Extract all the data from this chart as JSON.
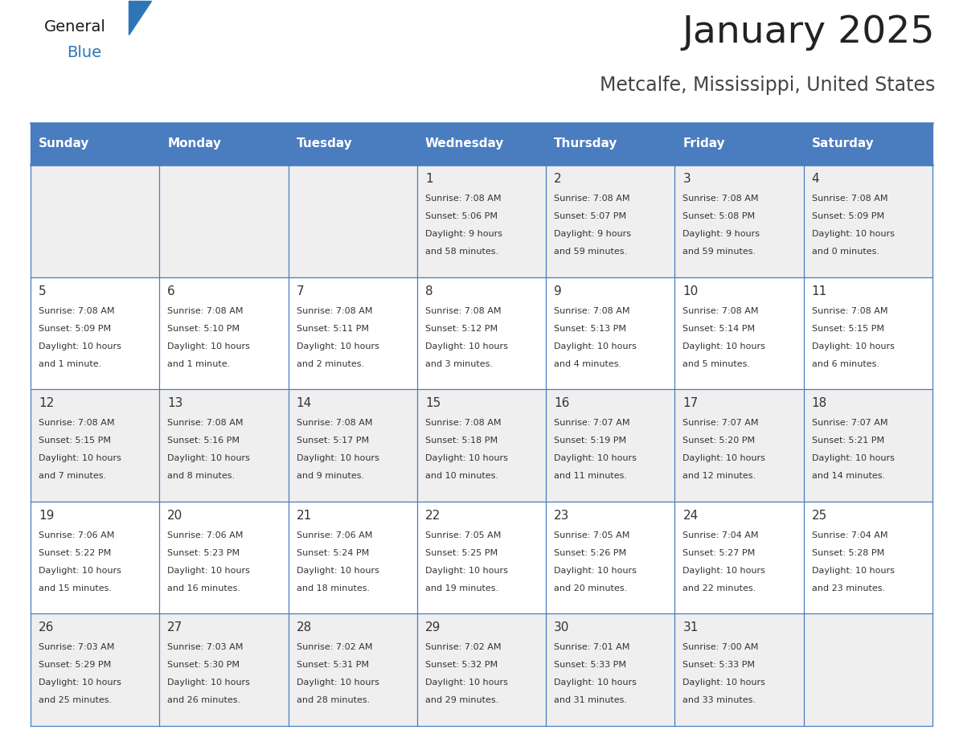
{
  "title": "January 2025",
  "subtitle": "Metcalfe, Mississippi, United States",
  "days_of_week": [
    "Sunday",
    "Monday",
    "Tuesday",
    "Wednesday",
    "Thursday",
    "Friday",
    "Saturday"
  ],
  "header_bg": "#4A7DBF",
  "header_text_color": "#FFFFFF",
  "odd_row_bg": "#EFEFEF",
  "even_row_bg": "#FFFFFF",
  "cell_text_color": "#333333",
  "border_color": "#4A7DBF",
  "title_color": "#222222",
  "subtitle_color": "#444444",
  "logo_general_color": "#1a1a1a",
  "logo_blue_color": "#2E75B6",
  "calendar_data": [
    [
      null,
      null,
      null,
      {
        "day": 1,
        "sunrise": "7:08 AM",
        "sunset": "5:06 PM",
        "dl1": "Daylight: 9 hours",
        "dl2": "and 58 minutes."
      },
      {
        "day": 2,
        "sunrise": "7:08 AM",
        "sunset": "5:07 PM",
        "dl1": "Daylight: 9 hours",
        "dl2": "and 59 minutes."
      },
      {
        "day": 3,
        "sunrise": "7:08 AM",
        "sunset": "5:08 PM",
        "dl1": "Daylight: 9 hours",
        "dl2": "and 59 minutes."
      },
      {
        "day": 4,
        "sunrise": "7:08 AM",
        "sunset": "5:09 PM",
        "dl1": "Daylight: 10 hours",
        "dl2": "and 0 minutes."
      }
    ],
    [
      {
        "day": 5,
        "sunrise": "7:08 AM",
        "sunset": "5:09 PM",
        "dl1": "Daylight: 10 hours",
        "dl2": "and 1 minute."
      },
      {
        "day": 6,
        "sunrise": "7:08 AM",
        "sunset": "5:10 PM",
        "dl1": "Daylight: 10 hours",
        "dl2": "and 1 minute."
      },
      {
        "day": 7,
        "sunrise": "7:08 AM",
        "sunset": "5:11 PM",
        "dl1": "Daylight: 10 hours",
        "dl2": "and 2 minutes."
      },
      {
        "day": 8,
        "sunrise": "7:08 AM",
        "sunset": "5:12 PM",
        "dl1": "Daylight: 10 hours",
        "dl2": "and 3 minutes."
      },
      {
        "day": 9,
        "sunrise": "7:08 AM",
        "sunset": "5:13 PM",
        "dl1": "Daylight: 10 hours",
        "dl2": "and 4 minutes."
      },
      {
        "day": 10,
        "sunrise": "7:08 AM",
        "sunset": "5:14 PM",
        "dl1": "Daylight: 10 hours",
        "dl2": "and 5 minutes."
      },
      {
        "day": 11,
        "sunrise": "7:08 AM",
        "sunset": "5:15 PM",
        "dl1": "Daylight: 10 hours",
        "dl2": "and 6 minutes."
      }
    ],
    [
      {
        "day": 12,
        "sunrise": "7:08 AM",
        "sunset": "5:15 PM",
        "dl1": "Daylight: 10 hours",
        "dl2": "and 7 minutes."
      },
      {
        "day": 13,
        "sunrise": "7:08 AM",
        "sunset": "5:16 PM",
        "dl1": "Daylight: 10 hours",
        "dl2": "and 8 minutes."
      },
      {
        "day": 14,
        "sunrise": "7:08 AM",
        "sunset": "5:17 PM",
        "dl1": "Daylight: 10 hours",
        "dl2": "and 9 minutes."
      },
      {
        "day": 15,
        "sunrise": "7:08 AM",
        "sunset": "5:18 PM",
        "dl1": "Daylight: 10 hours",
        "dl2": "and 10 minutes."
      },
      {
        "day": 16,
        "sunrise": "7:07 AM",
        "sunset": "5:19 PM",
        "dl1": "Daylight: 10 hours",
        "dl2": "and 11 minutes."
      },
      {
        "day": 17,
        "sunrise": "7:07 AM",
        "sunset": "5:20 PM",
        "dl1": "Daylight: 10 hours",
        "dl2": "and 12 minutes."
      },
      {
        "day": 18,
        "sunrise": "7:07 AM",
        "sunset": "5:21 PM",
        "dl1": "Daylight: 10 hours",
        "dl2": "and 14 minutes."
      }
    ],
    [
      {
        "day": 19,
        "sunrise": "7:06 AM",
        "sunset": "5:22 PM",
        "dl1": "Daylight: 10 hours",
        "dl2": "and 15 minutes."
      },
      {
        "day": 20,
        "sunrise": "7:06 AM",
        "sunset": "5:23 PM",
        "dl1": "Daylight: 10 hours",
        "dl2": "and 16 minutes."
      },
      {
        "day": 21,
        "sunrise": "7:06 AM",
        "sunset": "5:24 PM",
        "dl1": "Daylight: 10 hours",
        "dl2": "and 18 minutes."
      },
      {
        "day": 22,
        "sunrise": "7:05 AM",
        "sunset": "5:25 PM",
        "dl1": "Daylight: 10 hours",
        "dl2": "and 19 minutes."
      },
      {
        "day": 23,
        "sunrise": "7:05 AM",
        "sunset": "5:26 PM",
        "dl1": "Daylight: 10 hours",
        "dl2": "and 20 minutes."
      },
      {
        "day": 24,
        "sunrise": "7:04 AM",
        "sunset": "5:27 PM",
        "dl1": "Daylight: 10 hours",
        "dl2": "and 22 minutes."
      },
      {
        "day": 25,
        "sunrise": "7:04 AM",
        "sunset": "5:28 PM",
        "dl1": "Daylight: 10 hours",
        "dl2": "and 23 minutes."
      }
    ],
    [
      {
        "day": 26,
        "sunrise": "7:03 AM",
        "sunset": "5:29 PM",
        "dl1": "Daylight: 10 hours",
        "dl2": "and 25 minutes."
      },
      {
        "day": 27,
        "sunrise": "7:03 AM",
        "sunset": "5:30 PM",
        "dl1": "Daylight: 10 hours",
        "dl2": "and 26 minutes."
      },
      {
        "day": 28,
        "sunrise": "7:02 AM",
        "sunset": "5:31 PM",
        "dl1": "Daylight: 10 hours",
        "dl2": "and 28 minutes."
      },
      {
        "day": 29,
        "sunrise": "7:02 AM",
        "sunset": "5:32 PM",
        "dl1": "Daylight: 10 hours",
        "dl2": "and 29 minutes."
      },
      {
        "day": 30,
        "sunrise": "7:01 AM",
        "sunset": "5:33 PM",
        "dl1": "Daylight: 10 hours",
        "dl2": "and 31 minutes."
      },
      {
        "day": 31,
        "sunrise": "7:00 AM",
        "sunset": "5:33 PM",
        "dl1": "Daylight: 10 hours",
        "dl2": "and 33 minutes."
      },
      null
    ]
  ]
}
